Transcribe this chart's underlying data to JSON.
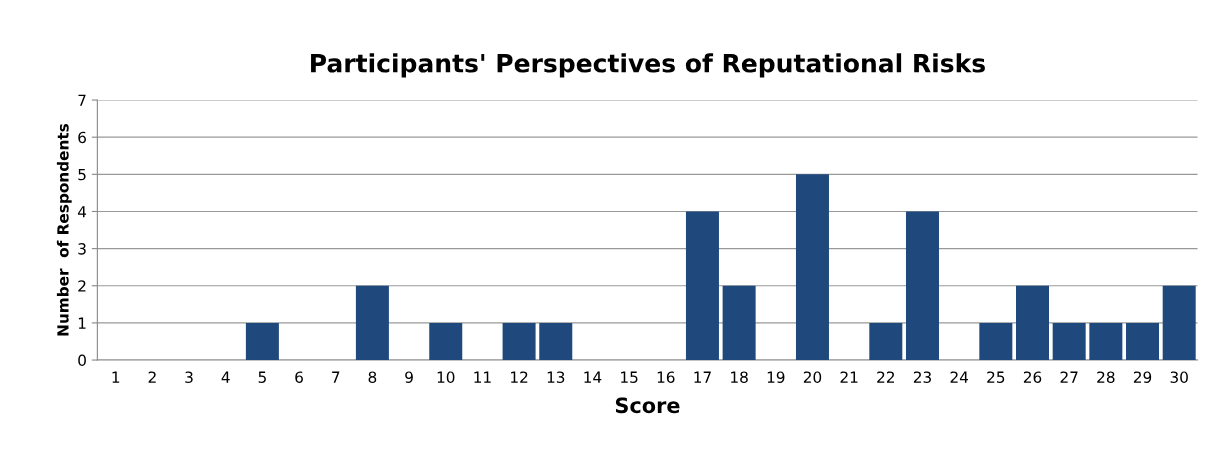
{
  "chart_data": {
    "type": "bar",
    "title": "Participants' Perspectives of Reputational Risks",
    "xlabel": "Score",
    "ylabel": "Number  of Respondents",
    "categories": [
      "1",
      "2",
      "3",
      "4",
      "5",
      "6",
      "7",
      "8",
      "9",
      "10",
      "11",
      "12",
      "13",
      "14",
      "15",
      "16",
      "17",
      "18",
      "19",
      "20",
      "21",
      "22",
      "23",
      "24",
      "25",
      "26",
      "27",
      "28",
      "29",
      "30"
    ],
    "values": [
      0,
      0,
      0,
      0,
      1,
      0,
      0,
      2,
      0,
      1,
      0,
      1,
      1,
      0,
      0,
      0,
      4,
      2,
      0,
      5,
      0,
      1,
      4,
      0,
      1,
      2,
      1,
      1,
      1,
      2
    ],
    "color": "#1f497d",
    "ylim": [
      0,
      7
    ],
    "yticks": [
      0,
      1,
      2,
      3,
      4,
      5,
      6,
      7
    ],
    "grid": "y",
    "legend": false
  }
}
